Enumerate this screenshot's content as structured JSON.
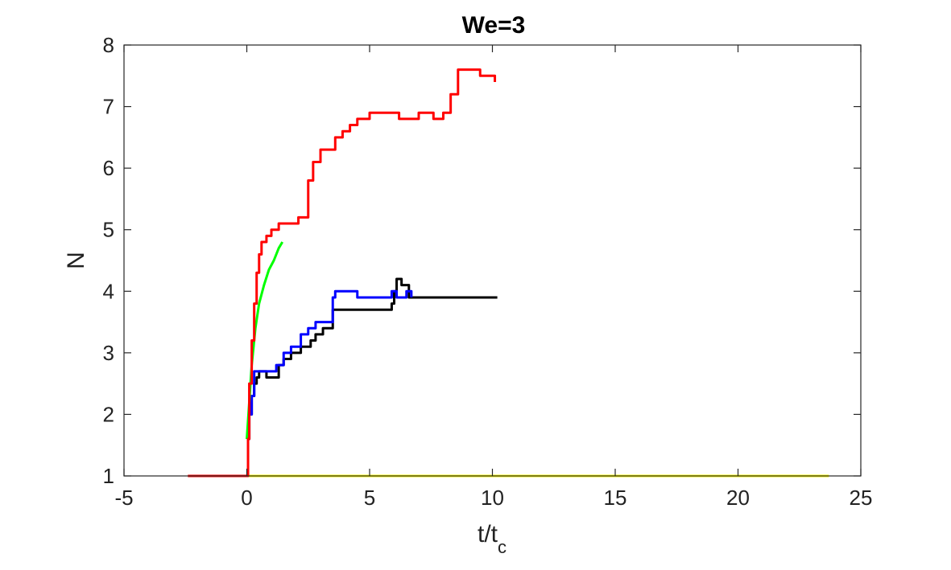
{
  "chart_data": {
    "type": "line",
    "title": "We=3",
    "xlabel": "t/t",
    "xlabel_subscript": "c",
    "ylabel": "N",
    "xlim": [
      -5,
      25
    ],
    "ylim": [
      1,
      8
    ],
    "xticks": [
      -5,
      0,
      5,
      10,
      15,
      20,
      25
    ],
    "yticks": [
      1,
      2,
      3,
      4,
      5,
      6,
      7,
      8
    ],
    "xtick_labels": [
      "-5",
      "0",
      "5",
      "10",
      "15",
      "20",
      "25"
    ],
    "ytick_labels": [
      "1",
      "2",
      "3",
      "4",
      "5",
      "6",
      "7",
      "8"
    ],
    "grid": false,
    "legend": "none",
    "series": [
      {
        "color": "#ffff00",
        "step": true,
        "x": [
          0,
          23.7
        ],
        "y": [
          1,
          1
        ]
      },
      {
        "color": "#000000",
        "step": true,
        "x": [
          0,
          0.1,
          0.2,
          0.3,
          0.4,
          0.5,
          0.8,
          1.3,
          1.5,
          1.8,
          2.2,
          2.6,
          2.8,
          3.1,
          3.5,
          5.9,
          6.0,
          6.1,
          6.3,
          6.6,
          10.2
        ],
        "y": [
          1.6,
          2.0,
          2.3,
          2.5,
          2.6,
          2.7,
          2.6,
          2.8,
          2.9,
          3.0,
          3.1,
          3.2,
          3.3,
          3.4,
          3.7,
          3.8,
          4.0,
          4.2,
          4.1,
          3.9,
          3.9
        ]
      },
      {
        "color": "#0000ff",
        "step": true,
        "x": [
          0,
          0.1,
          0.2,
          0.3,
          0.6,
          1.2,
          1.5,
          1.8,
          2.2,
          2.5,
          2.8,
          3.2,
          3.5,
          3.6,
          4.5,
          5.9,
          6.1,
          6.5,
          6.7
        ],
        "y": [
          1.6,
          2.0,
          2.3,
          2.7,
          2.7,
          2.8,
          3.0,
          3.1,
          3.3,
          3.4,
          3.5,
          3.5,
          3.9,
          4.0,
          3.9,
          4.0,
          3.9,
          4.0,
          3.9
        ]
      },
      {
        "color": "#00ff00",
        "step": false,
        "x": [
          0,
          0.1,
          0.2,
          0.35,
          0.5,
          0.7,
          0.9,
          1.1,
          1.3,
          1.45
        ],
        "y": [
          1.6,
          2.2,
          2.8,
          3.4,
          3.8,
          4.1,
          4.35,
          4.5,
          4.7,
          4.8
        ]
      },
      {
        "color": "#ff0000",
        "step": true,
        "x": [
          -2.4,
          0,
          0.05,
          0.1,
          0.2,
          0.3,
          0.4,
          0.5,
          0.6,
          0.8,
          1.0,
          1.3,
          1.6,
          2.1,
          2.5,
          2.7,
          3.0,
          3.3,
          3.6,
          3.9,
          4.2,
          4.5,
          5.0,
          5.6,
          6.2,
          7.0,
          7.6,
          8.0,
          8.3,
          8.6,
          9.5,
          10.1
        ],
        "y": [
          1,
          1,
          1.6,
          2.5,
          3.2,
          3.8,
          4.3,
          4.6,
          4.8,
          4.9,
          5.0,
          5.1,
          5.1,
          5.2,
          5.8,
          6.1,
          6.3,
          6.3,
          6.5,
          6.6,
          6.7,
          6.8,
          6.9,
          6.9,
          6.8,
          6.9,
          6.8,
          6.9,
          7.2,
          7.6,
          7.5,
          7.4
        ]
      }
    ]
  }
}
